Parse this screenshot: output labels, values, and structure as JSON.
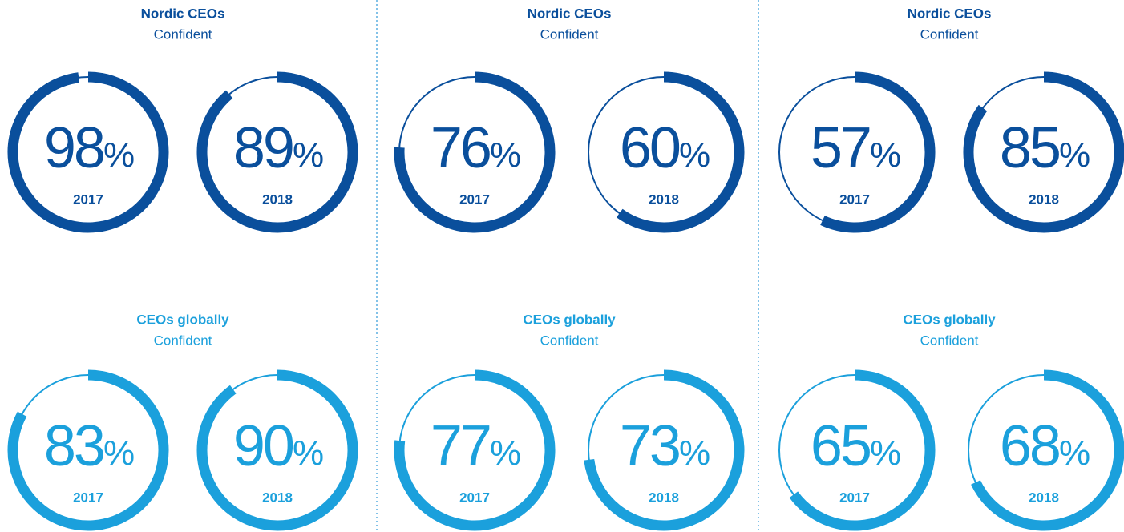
{
  "chart_data": [
    {
      "type": "gauge",
      "title": "Nordic CEOs",
      "subtitle": "Confident",
      "categories": [
        "2017",
        "2018"
      ],
      "values": [
        98,
        89
      ],
      "value_labels": [
        "98%",
        "89%"
      ],
      "color": "#0a4f9c",
      "ylim": [
        0,
        100
      ]
    },
    {
      "type": "gauge",
      "title": "CEOs globally",
      "subtitle": "Confident",
      "categories": [
        "2017",
        "2018"
      ],
      "values": [
        83,
        90
      ],
      "value_labels": [
        "83%",
        "90%"
      ],
      "color": "#1ba0dc",
      "ylim": [
        0,
        100
      ]
    },
    {
      "type": "gauge",
      "title": "Nordic CEOs",
      "subtitle": "Confident",
      "categories": [
        "2017",
        "2018"
      ],
      "values": [
        76,
        60
      ],
      "value_labels": [
        "76%",
        "60%"
      ],
      "color": "#0a4f9c",
      "ylim": [
        0,
        100
      ]
    },
    {
      "type": "gauge",
      "title": "CEOs globally",
      "subtitle": "Confident",
      "categories": [
        "2017",
        "2018"
      ],
      "values": [
        77,
        73
      ],
      "value_labels": [
        "77%",
        "73%"
      ],
      "color": "#1ba0dc",
      "ylim": [
        0,
        100
      ]
    },
    {
      "type": "gauge",
      "title": "Nordic CEOs",
      "subtitle": "Confident",
      "categories": [
        "2017",
        "2018"
      ],
      "values": [
        57,
        85
      ],
      "value_labels": [
        "57%",
        "85%"
      ],
      "color": "#0a4f9c",
      "ylim": [
        0,
        100
      ]
    },
    {
      "type": "gauge",
      "title": "CEOs globally",
      "subtitle": "Confident",
      "categories": [
        "2017",
        "2018"
      ],
      "values": [
        65,
        68
      ],
      "value_labels": [
        "65%",
        "68%"
      ],
      "color": "#1ba0dc",
      "ylim": [
        0,
        100
      ]
    }
  ]
}
